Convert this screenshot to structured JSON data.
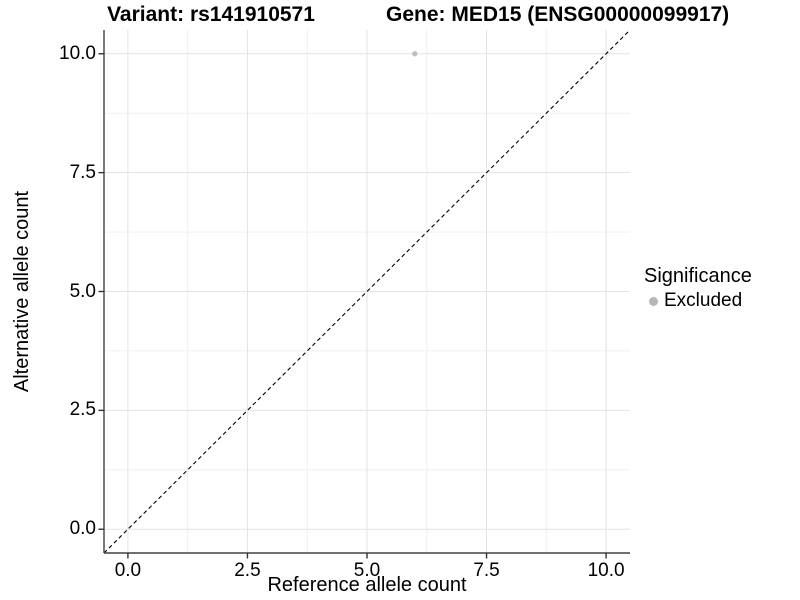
{
  "chart_data": {
    "type": "scatter",
    "title_left": "Variant: rs141910571",
    "title_right": "Gene: MED15 (ENSG00000099917)",
    "xlabel": "Reference allele count",
    "ylabel": "Alternative allele count",
    "xlim": [
      -0.5,
      10.5
    ],
    "ylim": [
      -0.5,
      10.5
    ],
    "xticks": {
      "values": [
        0,
        2.5,
        5,
        7.5,
        10
      ],
      "labels": [
        "0.0",
        "2.5",
        "5.0",
        "7.5",
        "10.0"
      ],
      "minor": [
        1.25,
        3.75,
        6.25,
        8.75
      ]
    },
    "yticks": {
      "values": [
        0,
        2.5,
        5,
        7.5,
        10
      ],
      "labels": [
        "0.0",
        "2.5",
        "5.0",
        "7.5",
        "10.0"
      ],
      "minor": [
        1.25,
        3.75,
        6.25,
        8.75
      ]
    },
    "grid": {
      "major": true,
      "minor": true
    },
    "series": [
      {
        "name": "Excluded",
        "color": "#bebebe",
        "points": [
          {
            "x": 6,
            "y": 10
          }
        ]
      }
    ],
    "reference_line": {
      "equation": "y = x",
      "style": "dashed",
      "color": "#000000"
    },
    "legend": {
      "position": "right",
      "title": "Significance",
      "entries": [
        {
          "label": "Excluded",
          "color": "#b7b7b7"
        }
      ]
    },
    "colors": {
      "background": "#ffffff",
      "grid_major": "#e3e3e3",
      "grid_minor": "#f0f0f0",
      "axis_line": "#424242",
      "tick_mark": "#333333",
      "text": "#000000"
    }
  }
}
